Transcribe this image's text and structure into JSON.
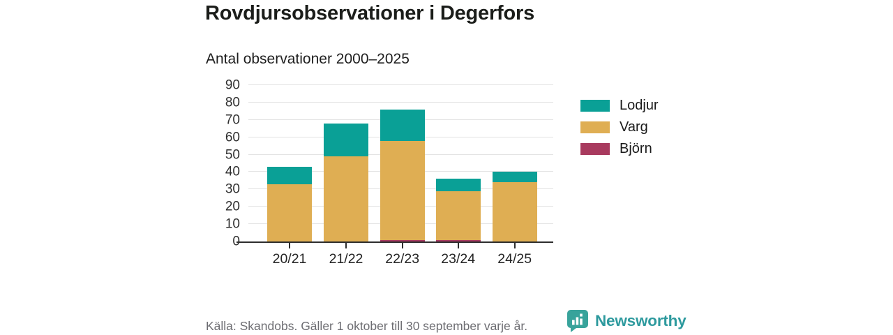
{
  "header": {
    "title": "Rovdjursobservationer i Degerfors"
  },
  "chart_data": {
    "type": "bar",
    "stacked": true,
    "title": "Antal observationer 2000–2025",
    "categories": [
      "20/21",
      "21/22",
      "22/23",
      "23/24",
      "24/25"
    ],
    "series": [
      {
        "name": "Björn",
        "color": "#a83a5e",
        "values": [
          0,
          0,
          1,
          1,
          0
        ]
      },
      {
        "name": "Varg",
        "color": "#dfae53",
        "values": [
          33,
          49,
          57,
          28,
          34
        ]
      },
      {
        "name": "Lodjur",
        "color": "#0aa096",
        "values": [
          10,
          19,
          18,
          7,
          6
        ]
      }
    ],
    "totals": [
      43,
      68,
      76,
      36,
      40
    ],
    "xlabel": "",
    "ylabel": "",
    "ylim": [
      0,
      90
    ],
    "yticks": [
      0,
      10,
      20,
      30,
      40,
      50,
      60,
      70,
      80,
      90
    ],
    "grid": true,
    "legend_position": "right",
    "legend_order": [
      "Lodjur",
      "Varg",
      "Björn"
    ]
  },
  "legend": {
    "items": [
      {
        "label": "Lodjur",
        "color": "#0aa096"
      },
      {
        "label": "Varg",
        "color": "#dfae53"
      },
      {
        "label": "Björn",
        "color": "#a83a5e"
      }
    ]
  },
  "footer": {
    "source": "Källa: Skandobs. Gäller 1 oktober till 30 september varje år.",
    "brand": "Newsworthy"
  },
  "colors": {
    "axis": "#2d2d2d",
    "gridline": "#e3e3e3",
    "brand_teal": "#2e9a9e"
  }
}
